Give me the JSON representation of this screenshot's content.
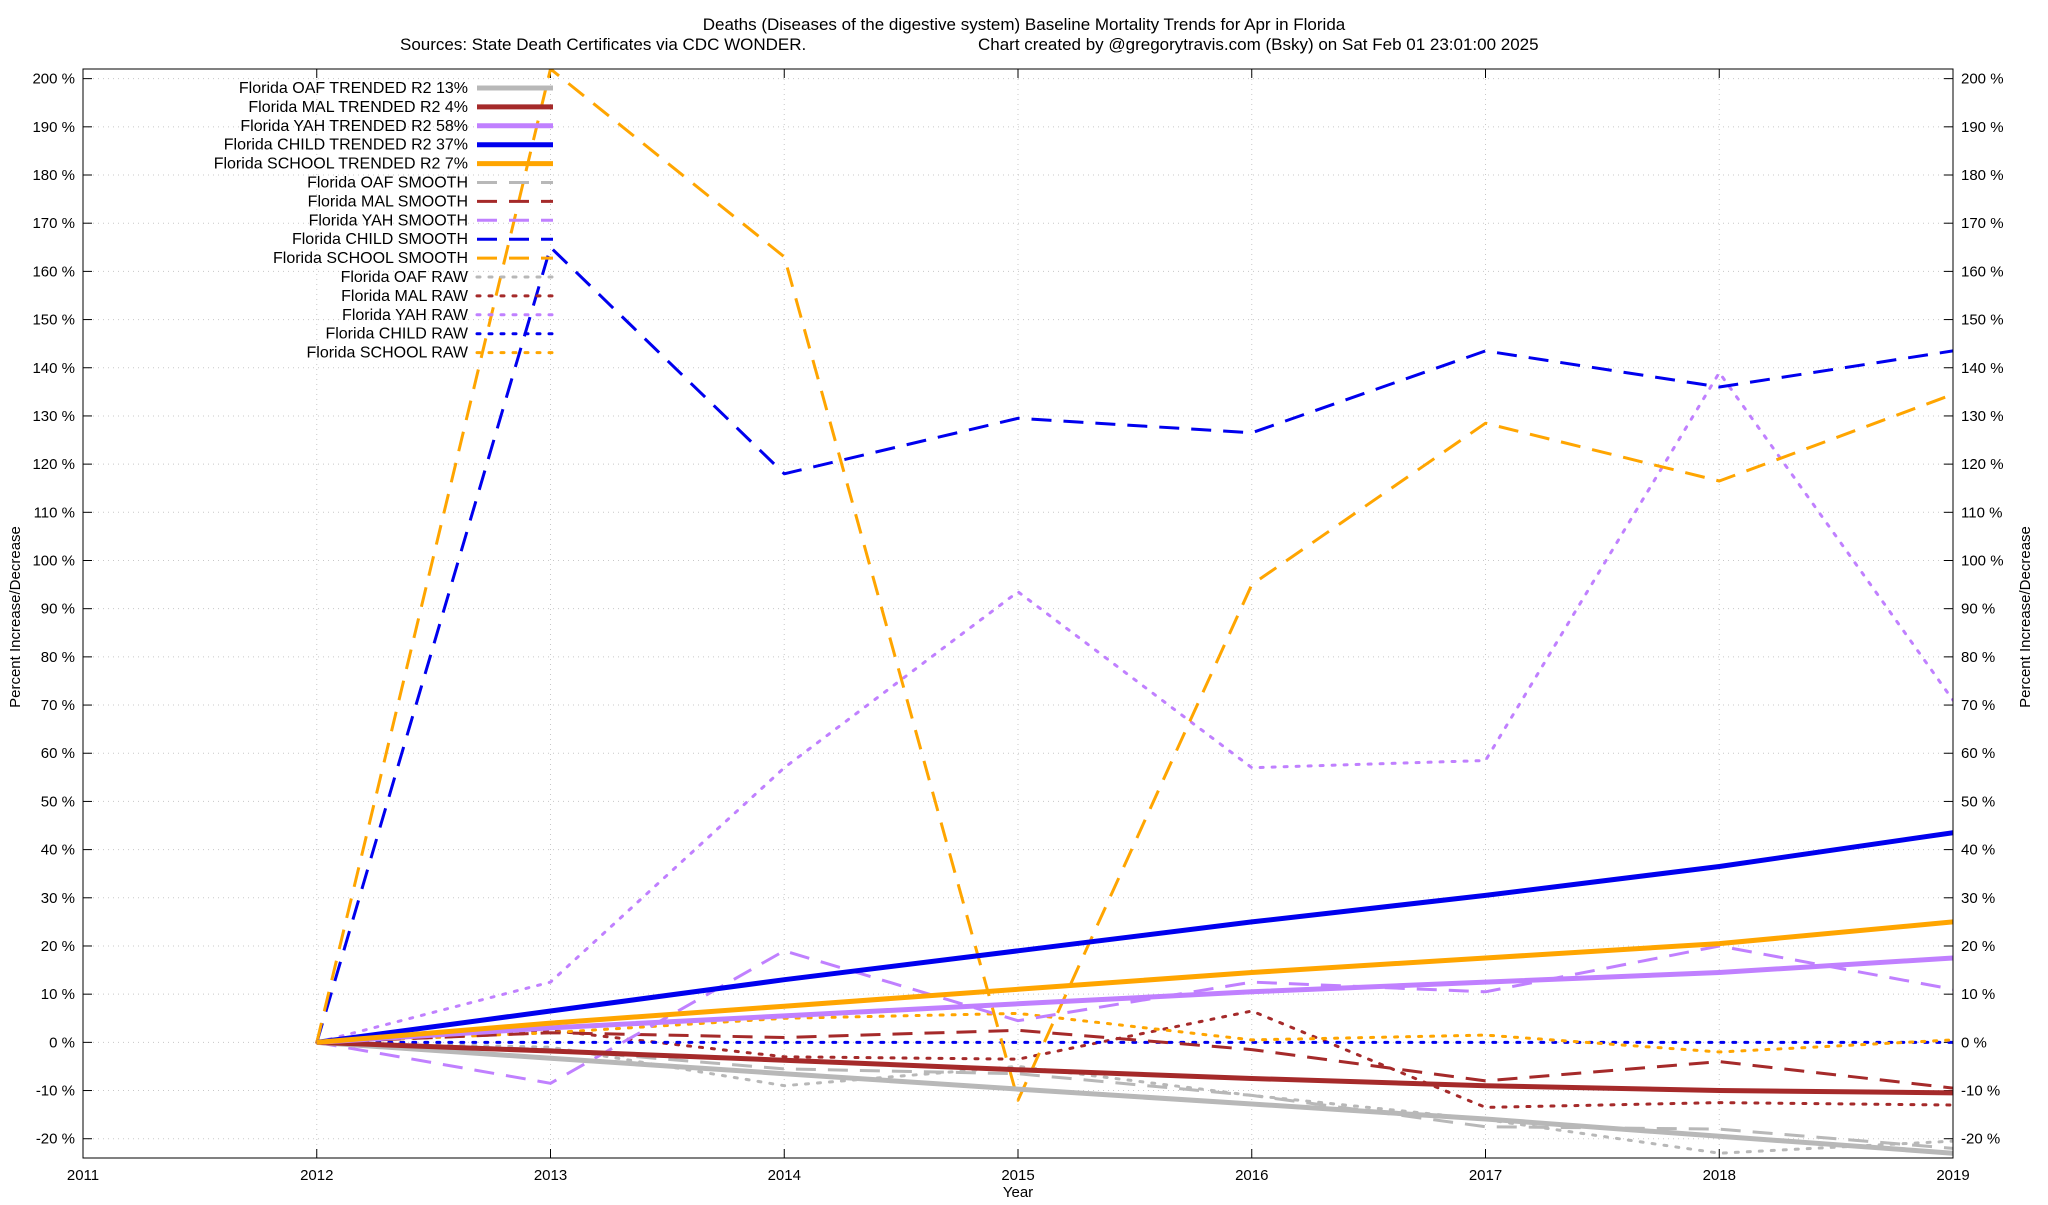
{
  "chart_data": {
    "type": "line",
    "title": "Deaths (Diseases of the digestive system)  Baseline Mortality Trends for Apr in Florida",
    "subtitle_left": "Sources: State Death Certificates via CDC WONDER.",
    "subtitle_right": "Chart created by @gregorytravis.com (Bsky) on Sat Feb 01 23:01:00 2025",
    "xlabel": "Year",
    "ylabel_left": "Percent Increase/Decrease",
    "ylabel_right": "Percent Increase/Decrease",
    "xlim": [
      2011,
      2019
    ],
    "ylim": [
      -24,
      202
    ],
    "x_ticks": [
      2011,
      2012,
      2013,
      2014,
      2015,
      2016,
      2017,
      2018,
      2019
    ],
    "y_ticks": [
      -20,
      -10,
      0,
      10,
      20,
      30,
      40,
      50,
      60,
      70,
      80,
      90,
      100,
      110,
      120,
      130,
      140,
      150,
      160,
      170,
      180,
      190,
      200
    ],
    "y_tick_suffix": " %",
    "grid": true,
    "legend_position": "top-left",
    "colors": {
      "oaf": "#b8b8b8",
      "mal": "#a52a2a",
      "yah": "#c080ff",
      "child": "#0000ee",
      "school": "#ffa500"
    },
    "x": [
      2012,
      2013,
      2014,
      2015,
      2016,
      2017,
      2018,
      2019
    ],
    "series": [
      {
        "name": "Florida OAF TRENDED R2  13%",
        "group": "oaf",
        "style": "trend",
        "values": [
          0,
          -3.3,
          -6.5,
          -9.7,
          -12.8,
          -15.9,
          -19.5,
          -23
        ]
      },
      {
        "name": "Florida MAL TRENDED R2   4%",
        "group": "mal",
        "style": "trend",
        "values": [
          0,
          -1.8,
          -3.7,
          -5.7,
          -7.5,
          -9,
          -10,
          -10.5
        ]
      },
      {
        "name": "Florida YAH TRENDED R2  58%",
        "group": "yah",
        "style": "trend",
        "values": [
          0,
          3,
          5.5,
          8,
          10.5,
          12.5,
          14.5,
          17.5
        ]
      },
      {
        "name": "Florida CHILD TRENDED R2  37%",
        "group": "child",
        "style": "trend",
        "values": [
          0,
          6.5,
          13,
          19,
          25,
          30.5,
          36.5,
          43.5
        ]
      },
      {
        "name": "Florida SCHOOL TRENDED R2   7%",
        "group": "school",
        "style": "trend",
        "values": [
          0,
          4,
          7.5,
          11,
          14.5,
          17.5,
          20.5,
          25
        ]
      },
      {
        "name": "Florida OAF SMOOTH",
        "group": "oaf",
        "style": "smooth",
        "values": [
          0,
          -1.5,
          -5.5,
          -6.5,
          -11,
          -17.5,
          -18,
          -22
        ]
      },
      {
        "name": "Florida MAL SMOOTH",
        "group": "mal",
        "style": "smooth",
        "values": [
          0,
          2,
          1,
          2.5,
          -1.5,
          -8,
          -4,
          -9.5
        ]
      },
      {
        "name": "Florida YAH SMOOTH",
        "group": "yah",
        "style": "smooth",
        "values": [
          0,
          -8.5,
          19,
          4.5,
          12.5,
          10.5,
          20,
          11
        ]
      },
      {
        "name": "Florida CHILD SMOOTH",
        "group": "child",
        "style": "smooth",
        "values": [
          0,
          165,
          118,
          129.5,
          126.5,
          143.5,
          136,
          143.5
        ]
      },
      {
        "name": "Florida SCHOOL SMOOTH",
        "group": "school",
        "style": "smooth",
        "values": [
          0,
          202,
          163,
          -12,
          95,
          128.5,
          116.5,
          134.5
        ]
      },
      {
        "name": "Florida OAF RAW",
        "group": "oaf",
        "style": "raw",
        "values": [
          0,
          -1,
          -9,
          -5,
          -11,
          -16,
          -23,
          -20.5
        ]
      },
      {
        "name": "Florida MAL RAW",
        "group": "mal",
        "style": "raw",
        "values": [
          0,
          2.5,
          -3,
          -3.5,
          6.5,
          -13.5,
          -12.5,
          -13
        ]
      },
      {
        "name": "Florida YAH RAW",
        "group": "yah",
        "style": "raw",
        "values": [
          0,
          12.5,
          57,
          93.5,
          57,
          58.5,
          139,
          71
        ]
      },
      {
        "name": "Florida CHILD RAW",
        "group": "child",
        "style": "raw",
        "values": [
          0,
          0,
          0,
          0,
          0,
          0,
          0,
          0
        ]
      },
      {
        "name": "Florida SCHOOL RAW",
        "group": "school",
        "style": "raw",
        "values": [
          0,
          2,
          5,
          6,
          0.5,
          1.5,
          -2,
          0.5
        ]
      }
    ]
  }
}
